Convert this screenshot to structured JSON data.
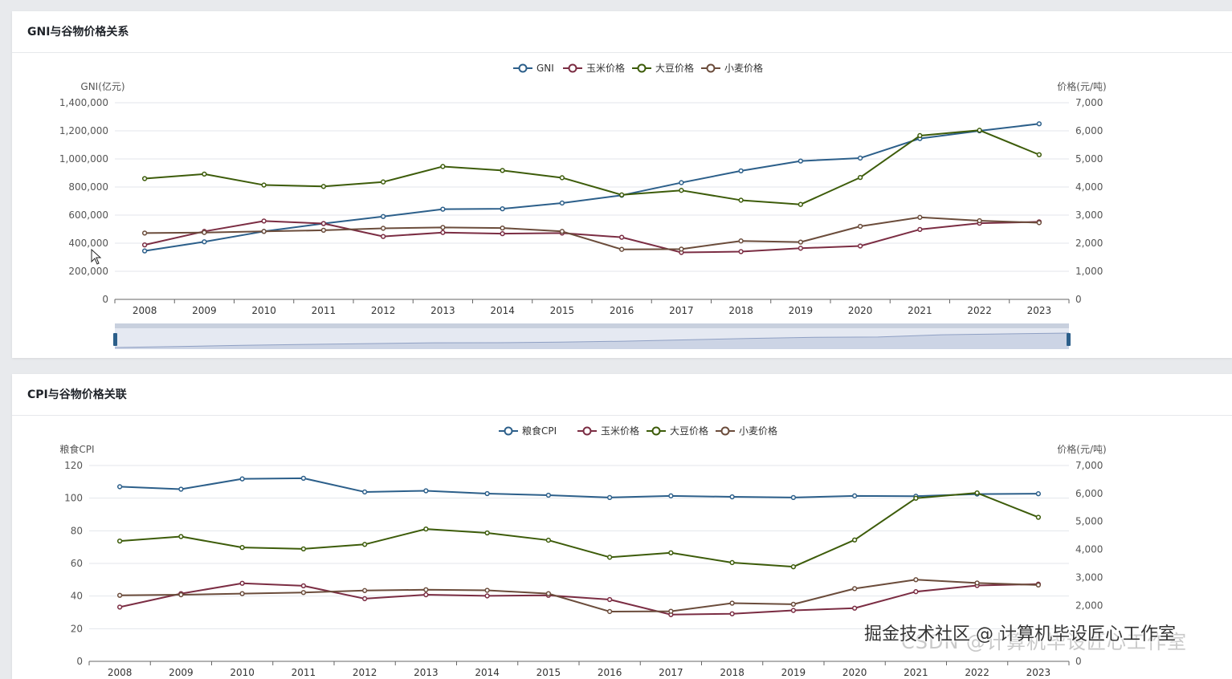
{
  "charts": [
    {
      "title": "GNI与谷物价格关系",
      "chart_data": {
        "type": "line",
        "categories": [
          "2008",
          "2009",
          "2010",
          "2011",
          "2012",
          "2013",
          "2014",
          "2015",
          "2016",
          "2017",
          "2018",
          "2019",
          "2020",
          "2021",
          "2022",
          "2023"
        ],
        "left_axis": {
          "name": "GNI(亿元)",
          "min": 0,
          "max": 1400000,
          "ticks": [
            0,
            200000,
            400000,
            600000,
            800000,
            1000000,
            1200000,
            1400000
          ]
        },
        "right_axis": {
          "name": "价格(元/吨)",
          "min": 0,
          "max": 7000,
          "ticks": [
            0,
            1000,
            2000,
            3000,
            4000,
            5000,
            6000,
            7000
          ]
        },
        "series": [
          {
            "name": "GNI",
            "axis": "left",
            "color": "#2c5f8a",
            "values": [
              345000,
              410000,
              484000,
              540000,
              590000,
              642000,
              645000,
              686000,
              741000,
              831000,
              915000,
              985000,
              1006000,
              1145000,
              1200000,
              1250000
            ]
          },
          {
            "name": "玉米价格",
            "axis": "right",
            "color": "#7b2d43",
            "values": [
              1940,
              2420,
              2790,
              2700,
              2240,
              2380,
              2340,
              2360,
              2210,
              1670,
              1700,
              1820,
              1900,
              2490,
              2710,
              2760
            ]
          },
          {
            "name": "大豆价格",
            "axis": "right",
            "color": "#3d5c0a",
            "values": [
              4300,
              4460,
              4070,
              4020,
              4180,
              4730,
              4590,
              4330,
              3720,
              3880,
              3530,
              3380,
              4340,
              5830,
              6020,
              5150
            ]
          },
          {
            "name": "小麦价格",
            "axis": "right",
            "color": "#6b4c3b",
            "values": [
              2360,
              2380,
              2420,
              2460,
              2530,
              2560,
              2540,
              2420,
              1780,
              1790,
              2080,
              2040,
              2600,
              2920,
              2800,
              2730
            ]
          }
        ],
        "has_zoom_slider": true
      }
    },
    {
      "title": "CPI与谷物价格关联",
      "chart_data": {
        "type": "line",
        "categories": [
          "2008",
          "2009",
          "2010",
          "2011",
          "2012",
          "2013",
          "2014",
          "2015",
          "2016",
          "2017",
          "2018",
          "2019",
          "2020",
          "2021",
          "2022",
          "2023"
        ],
        "left_axis": {
          "name": "粮食CPI",
          "min": 0,
          "max": 120,
          "ticks": [
            0,
            20,
            40,
            60,
            80,
            100,
            120
          ]
        },
        "right_axis": {
          "name": "价格(元/吨)",
          "min": 0,
          "max": 7000,
          "ticks": [
            0,
            2000,
            3000,
            4000,
            5000,
            6000,
            7000
          ]
        },
        "series": [
          {
            "name": "粮食CPI",
            "axis": "left",
            "color": "#2c5f8a",
            "values": [
              107,
              105.5,
              111.8,
              112.2,
              103.8,
              104.5,
              102.8,
              101.8,
              100.4,
              101.4,
              100.8,
              100.4,
              101.4,
              101.2,
              102.5,
              102.7
            ]
          },
          {
            "name": "玉米价格",
            "axis": "right",
            "color": "#7b2d43",
            "values": [
              1940,
              2420,
              2790,
              2700,
              2240,
              2380,
              2340,
              2360,
              2210,
              1670,
              1700,
              1820,
              1900,
              2490,
              2710,
              2760
            ]
          },
          {
            "name": "大豆价格",
            "axis": "right",
            "color": "#3d5c0a",
            "values": [
              4300,
              4460,
              4070,
              4020,
              4180,
              4730,
              4590,
              4330,
              3720,
              3880,
              3530,
              3380,
              4340,
              5830,
              6020,
              5150
            ]
          },
          {
            "name": "小麦价格",
            "axis": "right",
            "color": "#6b4c3b",
            "values": [
              2360,
              2380,
              2420,
              2460,
              2530,
              2560,
              2540,
              2420,
              1780,
              1790,
              2080,
              2040,
              2600,
              2920,
              2800,
              2730
            ]
          }
        ]
      }
    }
  ],
  "watermark": {
    "front": "掘金技术社区 @ 计算机毕设匠心工作室",
    "back": "CSDN @计算机毕设匠心工作室"
  }
}
